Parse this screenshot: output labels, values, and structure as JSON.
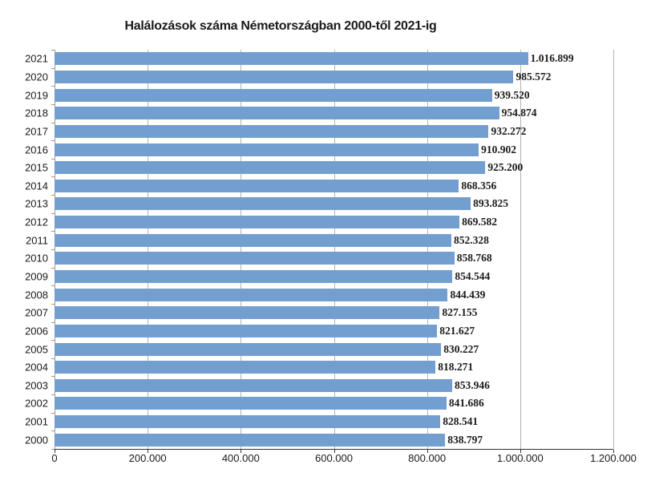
{
  "title": "Halálozások száma Németországban 2000-től 2021-ig",
  "colors": {
    "bar": "#729FCF",
    "gridline": "#b3b3b3",
    "axis": "#333333",
    "text": "#1a1a1a"
  },
  "chart_data": {
    "type": "bar",
    "orientation": "horizontal",
    "title": "Halálozások száma Németországban 2000-től 2021-ig",
    "xlabel": "",
    "ylabel": "",
    "xlim": [
      0,
      1200000
    ],
    "x_ticks": [
      "0",
      "200.000",
      "400.000",
      "600.000",
      "800.000",
      "1.000.000",
      "1.200.000"
    ],
    "grid": "vertical",
    "legend": "none",
    "categories_top_to_bottom": [
      "2021",
      "2020",
      "2019",
      "2018",
      "2017",
      "2016",
      "2015",
      "2014",
      "2013",
      "2012",
      "2011",
      "2010",
      "2009",
      "2008",
      "2007",
      "2006",
      "2005",
      "2004",
      "2003",
      "2002",
      "2001",
      "2000"
    ],
    "values": [
      1016899,
      985572,
      939520,
      954874,
      932272,
      910902,
      925200,
      868356,
      893825,
      869582,
      852328,
      858768,
      854544,
      844439,
      827155,
      821627,
      830227,
      818271,
      853946,
      841686,
      828541,
      838797
    ],
    "value_labels": [
      "1.016.899",
      "985.572",
      "939.520",
      "954.874",
      "932.272",
      "910.902",
      "925.200",
      "868.356",
      "893.825",
      "869.582",
      "852.328",
      "858.768",
      "854.544",
      "844.439",
      "827.155",
      "821.627",
      "830.227",
      "818.271",
      "853.946",
      "841.686",
      "828.541",
      "838.797"
    ]
  }
}
